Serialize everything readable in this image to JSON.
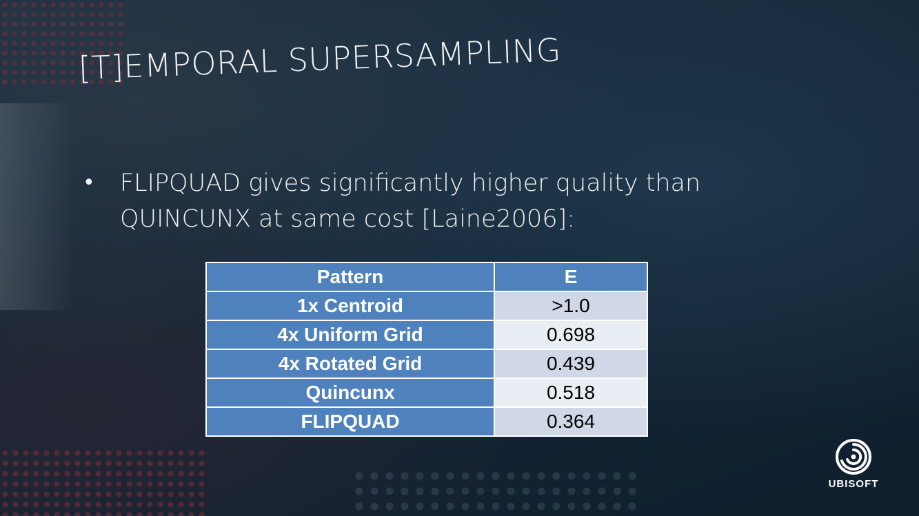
{
  "slide": {
    "title": "[T]EMPORAL SUPERSAMPLING",
    "bullet_symbol": "•",
    "bullet_text": "FLIPQUAD gives significantly higher quality than QUINCUNX at same cost [Laine2006]:"
  },
  "table": {
    "headers": [
      "Pattern",
      "E"
    ],
    "rows": [
      {
        "pattern": "1x Centroid",
        "e": ">1.0"
      },
      {
        "pattern": "4x Uniform Grid",
        "e": "0.698"
      },
      {
        "pattern": "4x Rotated Grid",
        "e": "0.439"
      },
      {
        "pattern": "Quincunx",
        "e": "0.518"
      },
      {
        "pattern": "FLIPQUAD",
        "e": "0.364"
      }
    ]
  },
  "logo": {
    "text": "UBISOFT",
    "icon": "ubisoft-swirl-icon"
  },
  "colors": {
    "background": "#142636",
    "table_header": "#4f81bd",
    "table_row_light": "#d0d8e8",
    "table_row_lighter": "#e9edf4",
    "text": "#f2f2f2"
  }
}
